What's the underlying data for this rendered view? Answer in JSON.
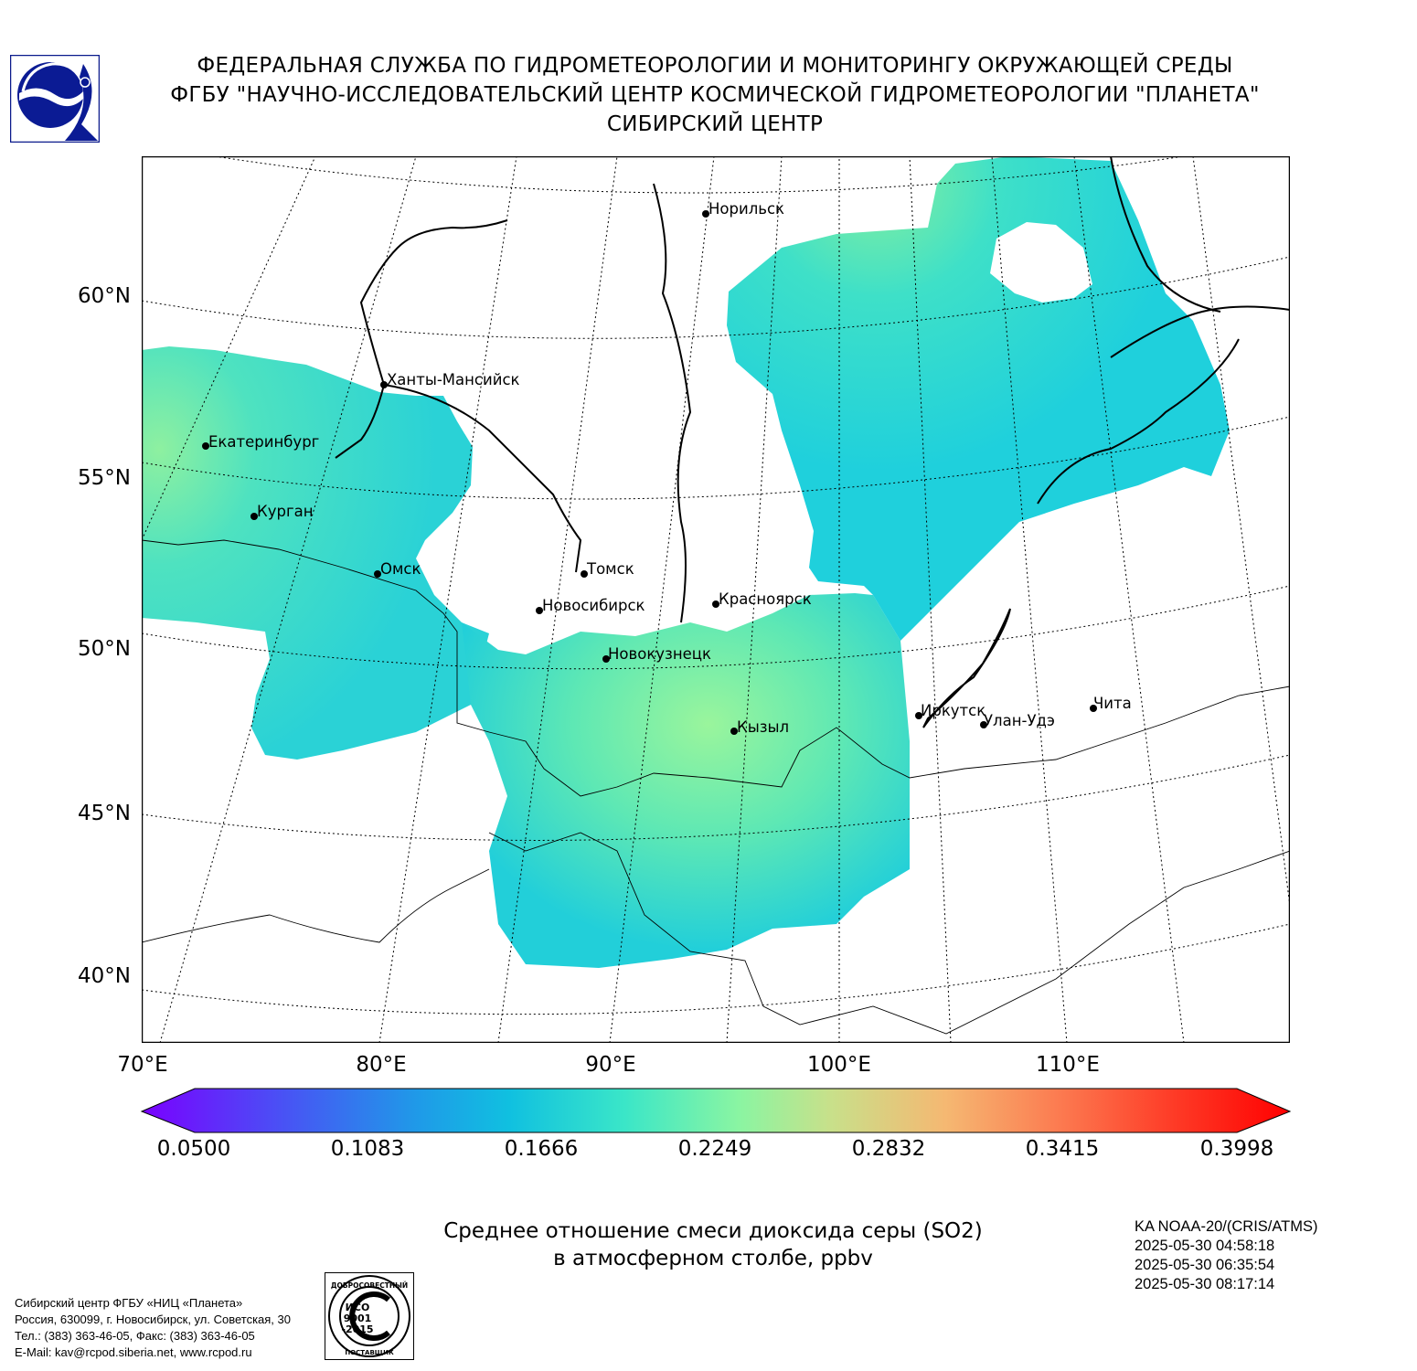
{
  "header": {
    "line1": "ФЕДЕРАЛЬНАЯ СЛУЖБА ПО ГИДРОМЕТЕОРОЛОГИИ И МОНИТОРИНГУ ОКРУЖАЮЩЕЙ СРЕДЫ",
    "line2": "ФГБУ \"НАУЧНО-ИССЛЕДОВАТЕЛЬСКИЙ ЦЕНТР КОСМИЧЕСКОЙ ГИДРОМЕТЕОРОЛОГИИ \"ПЛАНЕТА\"",
    "line3": "СИБИРСКИЙ ЦЕНТР"
  },
  "map": {
    "lat_labels": [
      "60°N",
      "55°N",
      "50°N",
      "45°N",
      "40°N"
    ],
    "lon_labels": [
      "70°E",
      "80°E",
      "90°E",
      "100°E",
      "110°E"
    ],
    "cities": [
      {
        "name": "Норильск"
      },
      {
        "name": "Ханты-Мансийск"
      },
      {
        "name": "Екатеринбург"
      },
      {
        "name": "Курган"
      },
      {
        "name": "Омск"
      },
      {
        "name": "Томск"
      },
      {
        "name": "Новосибирск"
      },
      {
        "name": "Красноярск"
      },
      {
        "name": "Новокузнецк"
      },
      {
        "name": "Кызыл"
      },
      {
        "name": "Иркутск"
      },
      {
        "name": "Улан-Удэ"
      },
      {
        "name": "Чита"
      }
    ]
  },
  "colorbar": {
    "ticks": [
      "0.0500",
      "0.1083",
      "0.1666",
      "0.2249",
      "0.2832",
      "0.3415",
      "0.3998"
    ],
    "min": 0.05,
    "max": 0.3998
  },
  "caption": {
    "line1": "Среднее отношение смеси диоксида серы (SO2)",
    "line2": "в атмосферном столбе, ppbv"
  },
  "satellite": {
    "name": "KA NOAA-20/(CRIS/ATMS)",
    "times": [
      "2025-05-30 04:58:18",
      "2025-05-30 06:35:54",
      "2025-05-30 08:17:14"
    ]
  },
  "footer": {
    "line1": "Сибирский центр ФГБУ «НИЦ «Планета»",
    "line2": "Россия, 630099, г. Новосибирск, ул. Советская, 30",
    "line3": "Тел.: (383) 363-46-05, Факс: (383) 363-46-05",
    "line4": "E-Mail: kav@rcpod.siberia.net, www.rcpod.ru"
  },
  "iso_badge": {
    "top_text": "ДОБРОСОВЕСТНЫЙ",
    "center_text_1": "ИСО",
    "center_text_2": "9001",
    "center_text_3": "-2015",
    "bottom_text": "ПОСТАВЩИК"
  }
}
